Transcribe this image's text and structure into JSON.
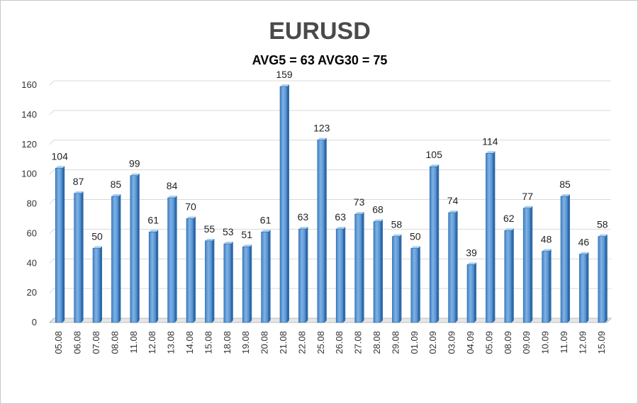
{
  "chart_data": {
    "type": "bar",
    "title": "EURUSD",
    "subtitle": "AVG5 = 63 AVG30 = 75",
    "xlabel": "",
    "ylabel": "",
    "ylim": [
      0,
      160
    ],
    "yticks": [
      0,
      20,
      40,
      60,
      80,
      100,
      120,
      140,
      160
    ],
    "grid": true,
    "categories": [
      "05.08",
      "06.08",
      "07.08",
      "08.08",
      "11.08",
      "12.08",
      "13.08",
      "14.08",
      "15.08",
      "18.08",
      "19.08",
      "20.08",
      "21.08",
      "22.08",
      "25.08",
      "26.08",
      "27.08",
      "28.08",
      "29.08",
      "01.09",
      "02.09",
      "03.09",
      "04.09",
      "05.09",
      "08.09",
      "09.09",
      "10.09",
      "11.09",
      "12.09",
      "15.09"
    ],
    "values": [
      104,
      87,
      50,
      85,
      99,
      61,
      84,
      70,
      55,
      53,
      51,
      61,
      159,
      63,
      123,
      63,
      73,
      68,
      58,
      50,
      105,
      74,
      39,
      114,
      62,
      77,
      48,
      85,
      46,
      58
    ],
    "bar_color": "#5b9bd5"
  }
}
